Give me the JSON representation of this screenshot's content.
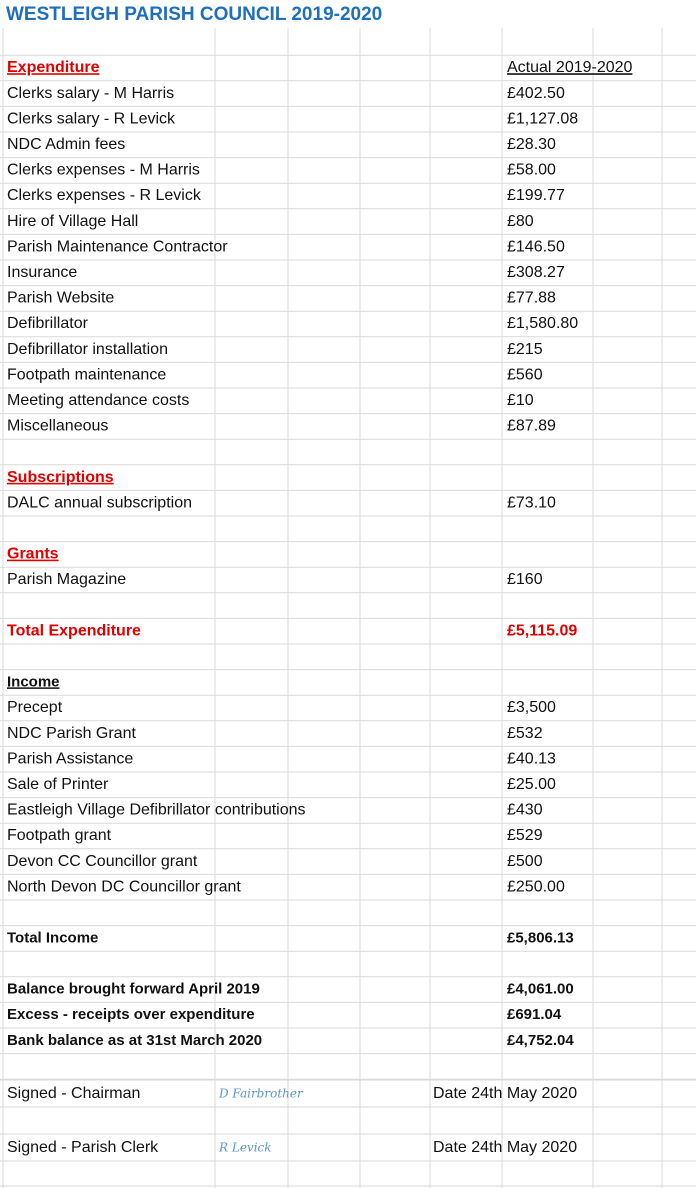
{
  "title": "WESTLEIGH PARISH COUNCIL 2019-2020",
  "column_header": "Actual 2019-2020",
  "expenditure": {
    "heading": "Expenditure",
    "items": [
      {
        "label": "Clerks salary - M Harris",
        "value": "£402.50"
      },
      {
        "label": "Clerks salary - R Levick",
        "value": "£1,127.08"
      },
      {
        "label": "NDC Admin fees",
        "value": "£28.30"
      },
      {
        "label": "Clerks expenses - M Harris",
        "value": "£58.00"
      },
      {
        "label": "Clerks expenses - R Levick",
        "value": "£199.77"
      },
      {
        "label": "Hire of Village Hall",
        "value": "£80"
      },
      {
        "label": "Parish Maintenance Contractor",
        "value": "£146.50"
      },
      {
        "label": "Insurance",
        "value": "£308.27"
      },
      {
        "label": "Parish Website",
        "value": "£77.88"
      },
      {
        "label": "Defibrillator",
        "value": "£1,580.80"
      },
      {
        "label": "Defibrillator installation",
        "value": "£215"
      },
      {
        "label": "Footpath maintenance",
        "value": "£560"
      },
      {
        "label": "Meeting attendance costs",
        "value": "£10"
      },
      {
        "label": "Miscellaneous",
        "value": "£87.89"
      }
    ]
  },
  "subscriptions": {
    "heading": "Subscriptions",
    "items": [
      {
        "label": "DALC annual subscription",
        "value": "£73.10"
      }
    ]
  },
  "grants": {
    "heading": "Grants",
    "items": [
      {
        "label": "Parish Magazine",
        "value": "£160"
      }
    ]
  },
  "total_expenditure": {
    "label": "Total Expenditure",
    "value": "£5,115.09"
  },
  "income": {
    "heading": "Income",
    "items": [
      {
        "label": "Precept",
        "value": "£3,500"
      },
      {
        "label": "NDC Parish Grant",
        "value": "£532"
      },
      {
        "label": "Parish Assistance",
        "value": "£40.13"
      },
      {
        "label": "Sale of Printer",
        "value": "£25.00"
      },
      {
        "label": "Eastleigh Village Defibrillator contributions",
        "value": "£430"
      },
      {
        "label": "Footpath grant",
        "value": "£529"
      },
      {
        "label": "Devon CC Councillor grant",
        "value": "£500"
      },
      {
        "label": "North Devon DC Councillor grant",
        "value": "£250.00"
      }
    ]
  },
  "total_income": {
    "label": "Total Income",
    "value": "£5,806.13"
  },
  "balances": [
    {
      "label": "Balance brought forward April 2019",
      "value": "£4,061.00"
    },
    {
      "label": "Excess - receipts over expenditure",
      "value": "£691.04"
    },
    {
      "label": "Bank balance as at 31st March 2020",
      "value": "£4,752.04"
    }
  ],
  "signatures": [
    {
      "label": "Signed - Chairman",
      "signature": "D Fairbrother",
      "date": "Date 24th May 2020"
    },
    {
      "label": "Signed - Parish Clerk",
      "signature": "R Levick",
      "date": "Date 24th May 2020"
    }
  ]
}
